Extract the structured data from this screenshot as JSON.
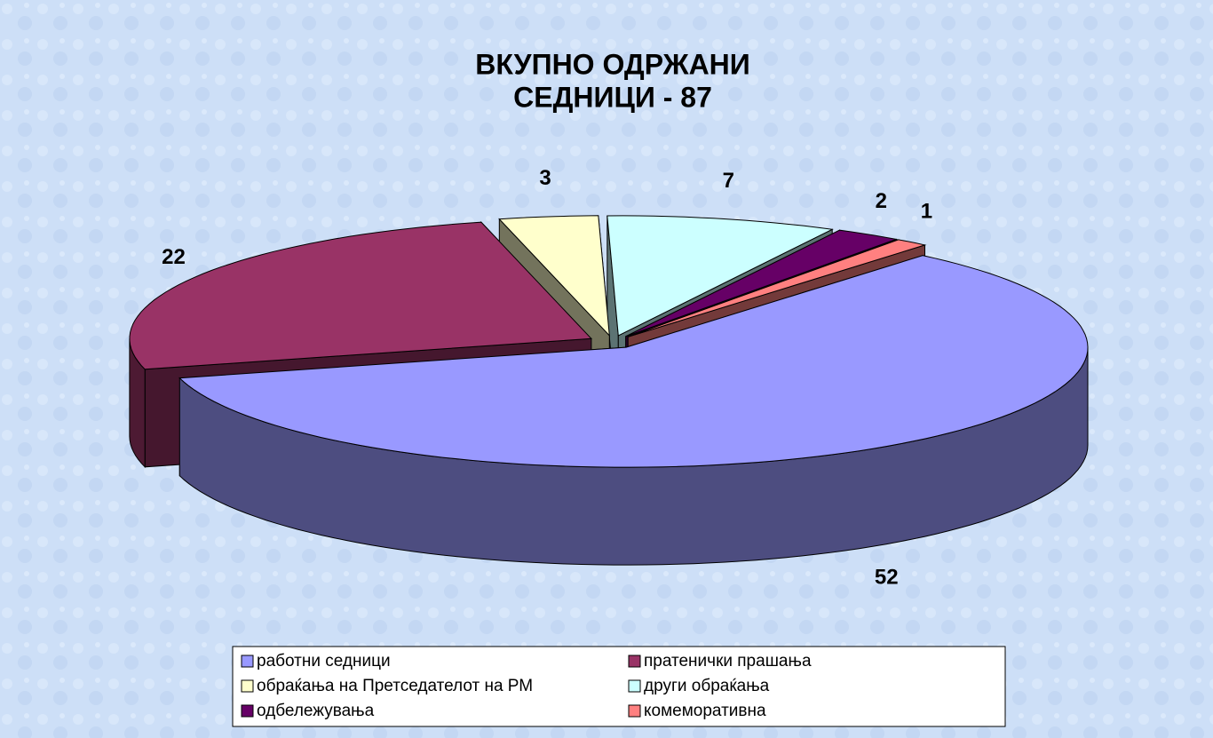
{
  "chart_data": {
    "type": "pie3d",
    "title": [
      "ВКУПНО ОДРЖАНИ",
      "СЕДНИЦИ - 87"
    ],
    "categories": [
      "работни седници",
      "пратенички прашања",
      "обраќања на Претседателот на РМ",
      "други обраќања",
      "одбележувања",
      "комеморативна"
    ],
    "values": [
      52,
      22,
      3,
      7,
      2,
      1
    ],
    "colors": [
      "#9999ff",
      "#993366",
      "#ffffcc",
      "#ccffff",
      "#660066",
      "#ff8080"
    ],
    "legend": "bottom"
  }
}
